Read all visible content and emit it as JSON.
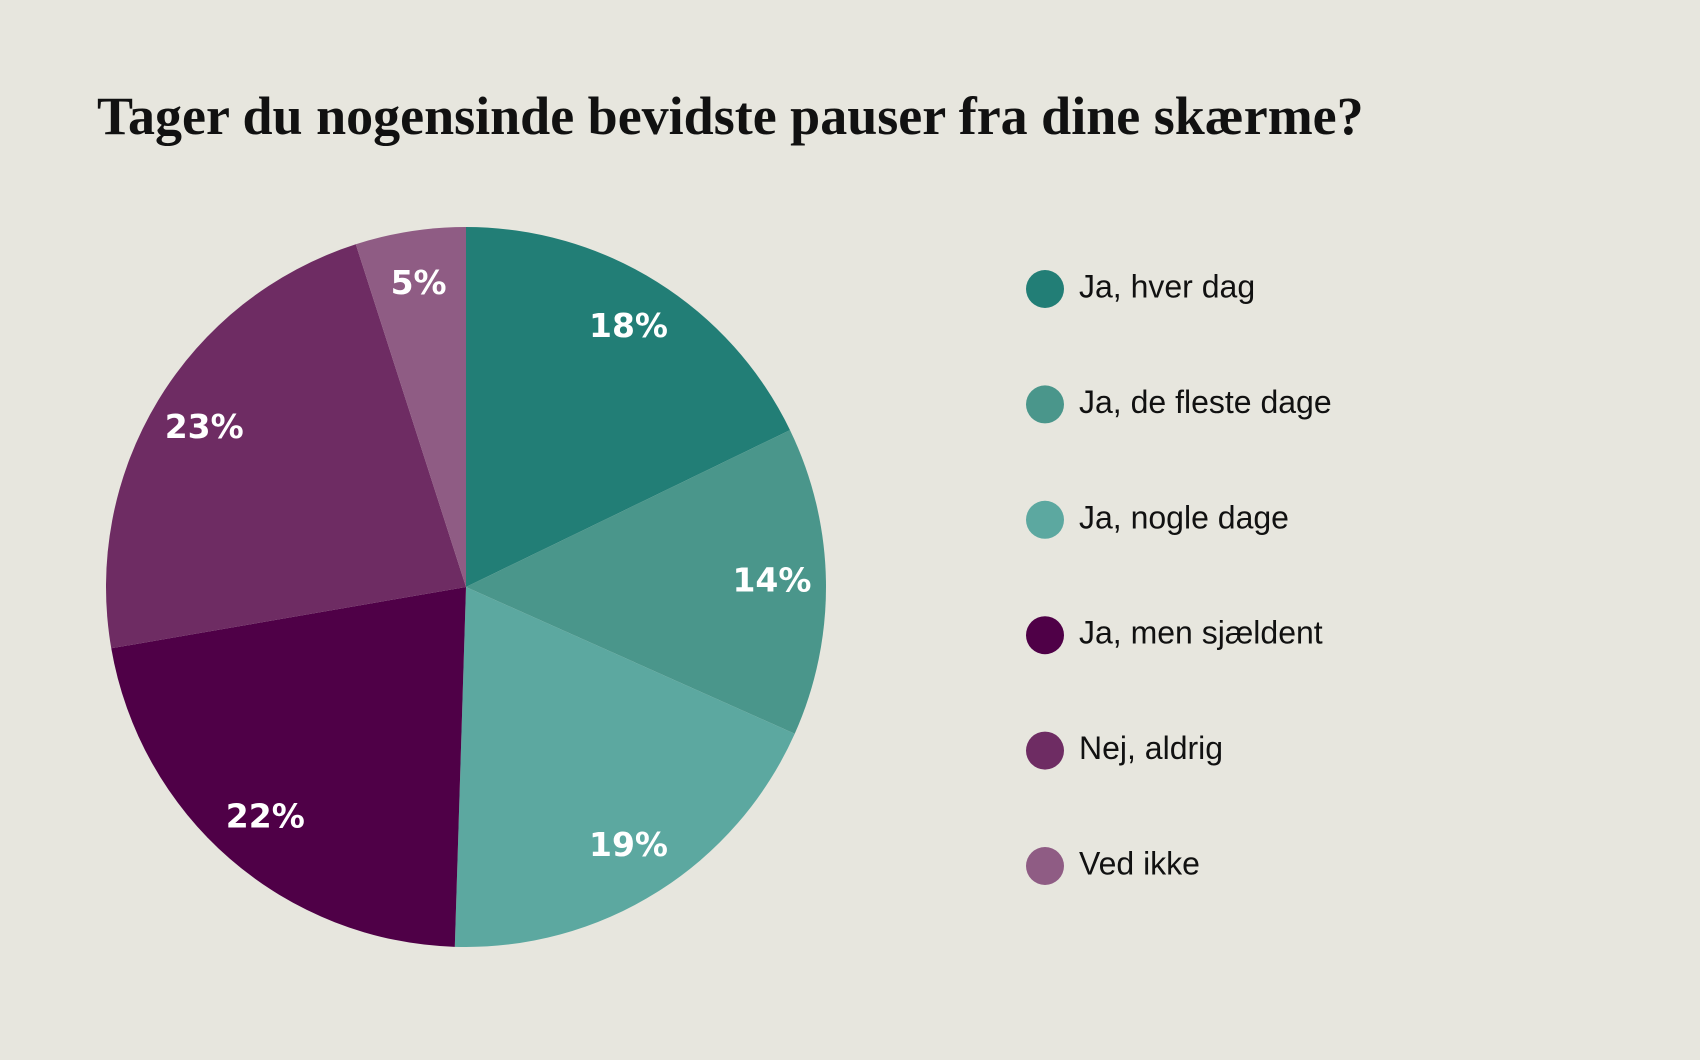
{
  "chart_data": {
    "type": "pie",
    "title": "Tager du nogensinde bevidste pauser fra dine skærme?",
    "categories": [
      "Ja, hver dag",
      "Ja, de fleste dage",
      "Ja, nogle dage",
      "Ja, men sjældent",
      "Nej, aldrig",
      "Ved ikke"
    ],
    "values": [
      18,
      14,
      19,
      22,
      23,
      5
    ],
    "value_labels": [
      "18%",
      "14%",
      "19%",
      "22%",
      "23%",
      "5%"
    ],
    "colors": [
      "#227e76",
      "#4a968b",
      "#5ca8a0",
      "#4f0047",
      "#6e2c63",
      "#8f5c84"
    ],
    "legend": "right"
  }
}
